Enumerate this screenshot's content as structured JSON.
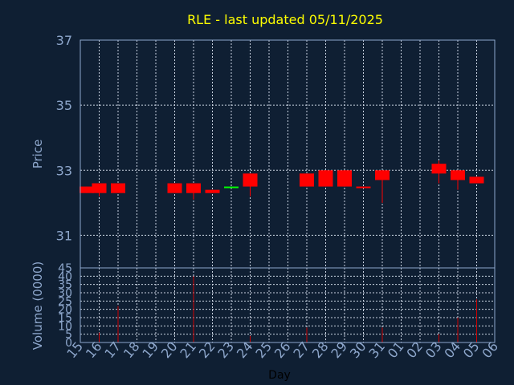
{
  "chart_data": {
    "type": "candlestick",
    "title": "RLE - last updated 05/11/2025",
    "xlabel": "Day",
    "price_panel": {
      "ylabel": "Price",
      "ylim": [
        30,
        37
      ],
      "y_ticks": [
        31,
        33,
        35,
        37
      ],
      "grid": true
    },
    "volume_panel": {
      "ylabel": "Volume (0000)",
      "ylim": [
        0,
        45
      ],
      "y_ticks": [
        0,
        5,
        10,
        15,
        20,
        25,
        30,
        35,
        40,
        45
      ],
      "grid": true
    },
    "x_ticks": [
      "15",
      "16",
      "17",
      "18",
      "19",
      "20",
      "21",
      "22",
      "23",
      "24",
      "25",
      "26",
      "27",
      "28",
      "29",
      "30",
      "31",
      "01",
      "02",
      "03",
      "04",
      "05",
      "06"
    ],
    "candles": [
      {
        "day": "15",
        "open": 32.5,
        "close": 32.3,
        "high": 32.5,
        "low": 32.3,
        "volume": 0,
        "color": "#ff0000"
      },
      {
        "day": "16",
        "open": 32.6,
        "close": 32.3,
        "high": 32.6,
        "low": 32.2,
        "volume": 6,
        "color": "#ff0000"
      },
      {
        "day": "17",
        "open": 32.6,
        "close": 32.3,
        "high": 32.6,
        "low": 32.3,
        "volume": 22,
        "color": "#ff0000"
      },
      {
        "day": "20",
        "open": 32.6,
        "close": 32.3,
        "high": 32.6,
        "low": 32.3,
        "volume": 0,
        "color": "#ff0000"
      },
      {
        "day": "21",
        "open": 32.6,
        "close": 32.3,
        "high": 32.6,
        "low": 32.1,
        "volume": 40,
        "color": "#ff0000"
      },
      {
        "day": "22",
        "open": 32.4,
        "close": 32.3,
        "high": 32.4,
        "low": 32.3,
        "volume": 0,
        "color": "#ff0000"
      },
      {
        "day": "23",
        "open": 32.5,
        "close": 32.5,
        "high": 32.5,
        "low": 32.5,
        "volume": 0,
        "color": "#00ff00"
      },
      {
        "day": "24",
        "open": 32.9,
        "close": 32.5,
        "high": 32.9,
        "low": 32.2,
        "volume": 4,
        "color": "#ff0000"
      },
      {
        "day": "27",
        "open": 32.9,
        "close": 32.5,
        "high": 32.9,
        "low": 32.5,
        "volume": 9,
        "color": "#ff0000"
      },
      {
        "day": "28",
        "open": 33.0,
        "close": 32.5,
        "high": 33.0,
        "low": 32.5,
        "volume": 0,
        "color": "#ff0000"
      },
      {
        "day": "29",
        "open": 33.0,
        "close": 32.5,
        "high": 33.0,
        "low": 32.5,
        "volume": 0,
        "color": "#ff0000"
      },
      {
        "day": "30",
        "open": 32.5,
        "close": 32.45,
        "high": 32.5,
        "low": 32.45,
        "volume": 0,
        "color": "#ff0000"
      },
      {
        "day": "31",
        "open": 33.0,
        "close": 32.7,
        "high": 33.0,
        "low": 32.0,
        "volume": 9,
        "color": "#ff0000"
      },
      {
        "day": "03",
        "open": 33.2,
        "close": 32.9,
        "high": 33.3,
        "low": 32.6,
        "volume": 5,
        "color": "#ff0000"
      },
      {
        "day": "04",
        "open": 33.0,
        "close": 32.7,
        "high": 33.0,
        "low": 32.4,
        "volume": 15,
        "color": "#ff0000"
      },
      {
        "day": "05",
        "open": 32.8,
        "close": 32.6,
        "high": 32.8,
        "low": 32.6,
        "volume": 26,
        "color": "#ff0000"
      }
    ],
    "colors": {
      "background": "#0f1f33",
      "axis": "#8ea7cc",
      "grid": "#c8d2e0",
      "title": "#ffff00",
      "down": "#ff0000",
      "up": "#00ff00",
      "volume_bar": "#cc0000"
    }
  }
}
